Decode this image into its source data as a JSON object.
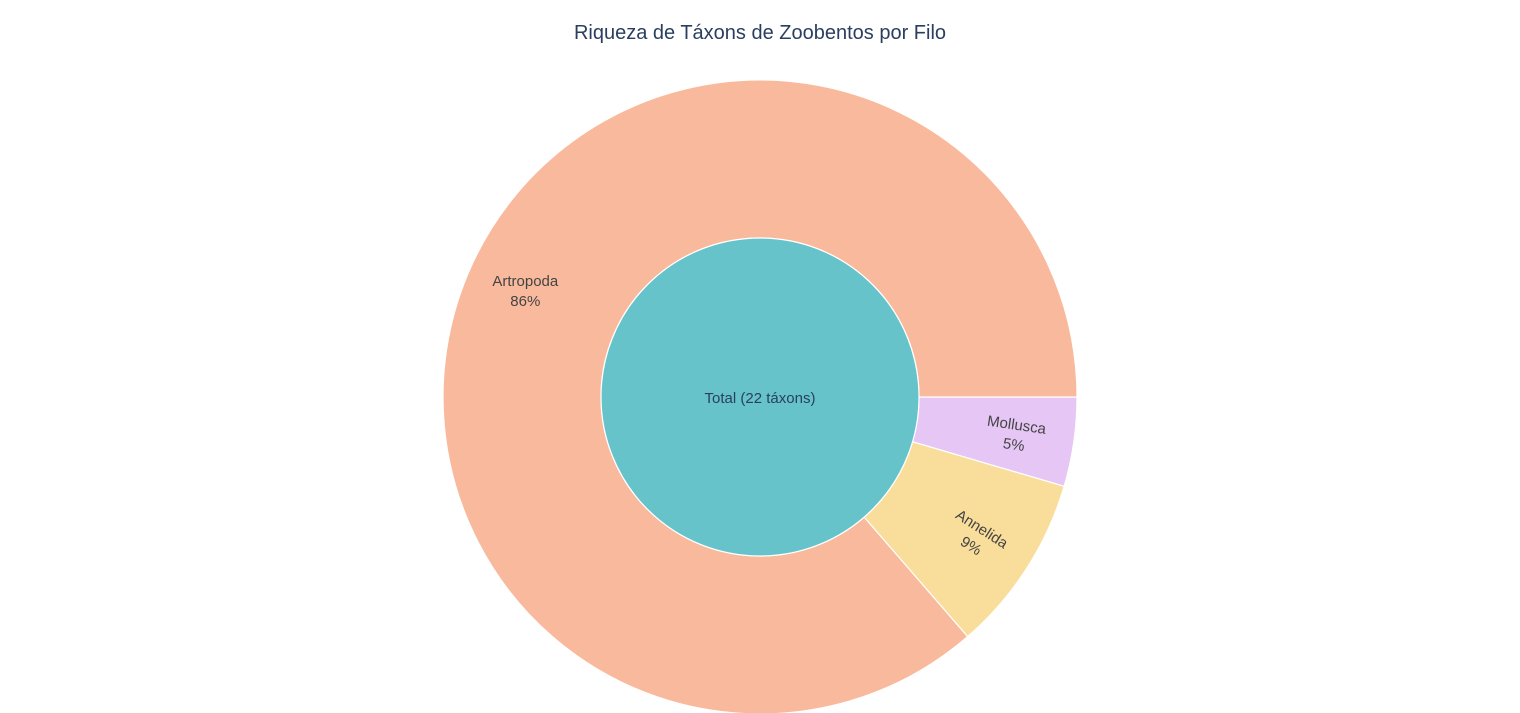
{
  "chart_data": {
    "type": "pie",
    "title": "Riqueza de Táxons de Zoobentos por Filo",
    "center": {
      "label": "Total (22 táxons)",
      "color": "#66c3ca"
    },
    "slices": [
      {
        "label": "Artropoda",
        "percent_text": "86%",
        "value": 19,
        "color": "#f9b99d"
      },
      {
        "label": "Annelida",
        "percent_text": "9%",
        "value": 2,
        "color": "#f9dd9a"
      },
      {
        "label": "Mollusca",
        "percent_text": "5%",
        "value": 1,
        "color": "#e6c6f5"
      }
    ]
  }
}
